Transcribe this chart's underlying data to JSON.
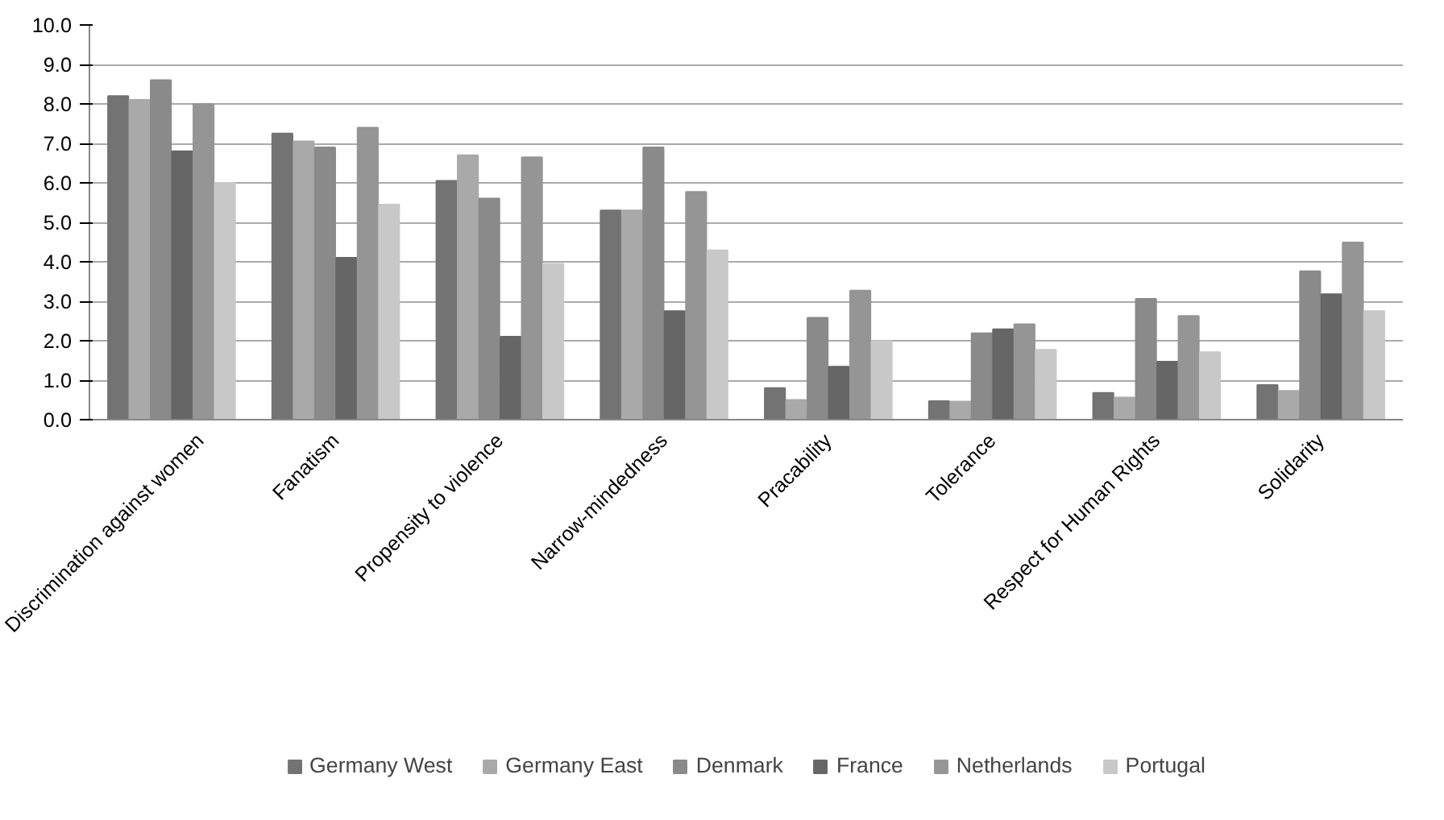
{
  "chart_data": {
    "type": "bar",
    "categories": [
      "Discrimination against women",
      "Fanatism",
      "Propensity to violence",
      "Narrow-mindedness",
      "Pracability",
      "Tolerance",
      "Respect for Human Rights",
      "Solidarity"
    ],
    "series": [
      {
        "name": "Germany West",
        "color": "#737373",
        "values": [
          8.2,
          7.25,
          6.05,
          5.3,
          0.8,
          0.47,
          0.68,
          0.88
        ]
      },
      {
        "name": "Germany East",
        "color": "#a9a9a9",
        "values": [
          8.1,
          7.05,
          6.7,
          5.3,
          0.5,
          0.46,
          0.56,
          0.73
        ]
      },
      {
        "name": "Denmark",
        "color": "#8a8a8a",
        "values": [
          8.6,
          6.9,
          5.6,
          6.9,
          2.58,
          2.19,
          3.06,
          3.76
        ]
      },
      {
        "name": "France",
        "color": "#666666",
        "values": [
          6.8,
          4.1,
          2.1,
          2.75,
          1.34,
          2.29,
          1.47,
          3.18
        ]
      },
      {
        "name": "Netherlands",
        "color": "#959595",
        "values": [
          8.0,
          7.4,
          6.65,
          5.77,
          3.27,
          2.42,
          2.63,
          4.49
        ]
      },
      {
        "name": "Portugal",
        "color": "#c8c8c8",
        "values": [
          6.0,
          5.45,
          3.95,
          4.29,
          1.99,
          1.77,
          1.71,
          2.75
        ]
      }
    ],
    "ylim": [
      0,
      10
    ],
    "yticks": [
      {
        "value": 0,
        "label": "0.0"
      },
      {
        "value": 1,
        "label": "1.0"
      },
      {
        "value": 2,
        "label": "2.0"
      },
      {
        "value": 3,
        "label": "3.0"
      },
      {
        "value": 4,
        "label": "4.0"
      },
      {
        "value": 5,
        "label": "5.0"
      },
      {
        "value": 6,
        "label": "6.0"
      },
      {
        "value": 7,
        "label": "7.0"
      },
      {
        "value": 8,
        "label": "8.0"
      },
      {
        "value": 9,
        "label": "9.0"
      },
      {
        "value": 10,
        "label": "10.0"
      }
    ],
    "grid": "y",
    "legend": "bottom"
  }
}
